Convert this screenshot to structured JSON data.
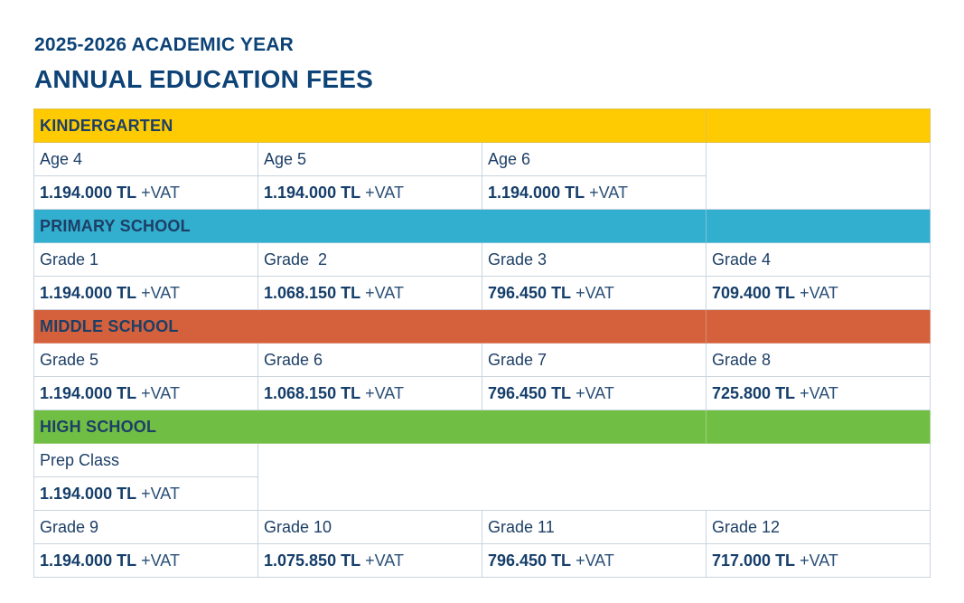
{
  "header": {
    "academic_year": "2025-2026 ACADEMIC YEAR",
    "title": "ANNUAL EDUCATION FEES"
  },
  "vat_suffix": "+VAT",
  "colors": {
    "kindergarten": "#fecb02",
    "primary": "#32aecf",
    "middle": "#d5613c",
    "high": "#70bf44",
    "heading": "#0d4377"
  },
  "kindergarten": {
    "heading": "KINDERGARTEN",
    "items": [
      {
        "label": "Age 4",
        "price": "1.194.000 TL"
      },
      {
        "label": "Age 5",
        "price": "1.194.000 TL"
      },
      {
        "label": "Age 6",
        "price": "1.194.000 TL"
      }
    ]
  },
  "primary": {
    "heading": "PRIMARY SCHOOL",
    "items": [
      {
        "label": "Grade 1",
        "price": "1.194.000 TL"
      },
      {
        "label": "Grade  2",
        "price": "1.068.150 TL"
      },
      {
        "label": "Grade 3",
        "price": "796.450 TL"
      },
      {
        "label": "Grade 4",
        "price": "709.400 TL"
      }
    ]
  },
  "middle": {
    "heading": "MIDDLE SCHOOL",
    "items": [
      {
        "label": "Grade 5",
        "price": "1.194.000 TL"
      },
      {
        "label": "Grade 6",
        "price": "1.068.150 TL"
      },
      {
        "label": "Grade 7",
        "price": "796.450 TL"
      },
      {
        "label": "Grade 8",
        "price": "725.800 TL"
      }
    ]
  },
  "high": {
    "heading": "HIGH SCHOOL",
    "prep": {
      "label": "Prep Class",
      "price": "1.194.000 TL"
    },
    "items": [
      {
        "label": "Grade 9",
        "price": "1.194.000 TL"
      },
      {
        "label": "Grade 10",
        "price": "1.075.850 TL"
      },
      {
        "label": "Grade 11",
        "price": "796.450 TL"
      },
      {
        "label": "Grade 12",
        "price": "717.000 TL"
      }
    ]
  }
}
